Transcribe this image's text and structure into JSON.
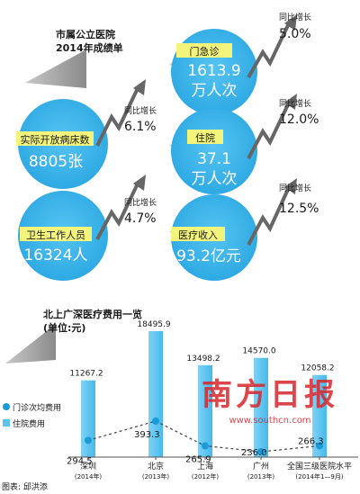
{
  "infographic": {
    "title_line1": "市属公立医院",
    "title_line2": "2014年成绩单",
    "growth_label": "同比增长",
    "stats": [
      {
        "label": "门急诊",
        "value": "1613.9",
        "unit": "万人次",
        "growth": "5.0%"
      },
      {
        "label": "实际开放病床数",
        "value": "8805张",
        "unit": "",
        "growth": "6.1%"
      },
      {
        "label": "住院",
        "value": "37.1",
        "unit": "万人次",
        "growth": "12.0%"
      },
      {
        "label": "卫生工作人员",
        "value": "16324人",
        "unit": "",
        "growth": "4.7%"
      },
      {
        "label": "医疗收入",
        "value": "93.2亿元",
        "unit": "",
        "growth": "12.5%"
      }
    ],
    "colors": {
      "circle": "#3ab4ea",
      "label_box": "#f3f47c",
      "arrow": "#666666",
      "triangle": "#a8a8a8"
    }
  },
  "chart_data": {
    "type": "bar",
    "title": "北上广深医疗费用一览",
    "subtitle": "(单位:元)",
    "categories": [
      "深圳",
      "北京",
      "上海",
      "广州",
      "全国三级医院水平"
    ],
    "category_notes": [
      "(2014年)",
      "(2013年)",
      "(2012年)",
      "(2013年)",
      "(2014年1—9月)"
    ],
    "series": [
      {
        "name": "住院费用",
        "values": [
          11267.2,
          18495.9,
          13498.2,
          14570.0,
          12058.2
        ],
        "labels": [
          "11267.2",
          "18495.9",
          "13498.2",
          "14570.0",
          "12058.2"
        ],
        "color": "#5ec4ef"
      },
      {
        "name": "门诊次均费用",
        "values": [
          294.5,
          393.3,
          265.9,
          236.0,
          266.3
        ],
        "labels": [
          "294.5",
          "393.3",
          "265.9",
          "236.0",
          "266.3"
        ],
        "color": "#1a9ad6"
      }
    ],
    "legend_position": "left",
    "grid": false
  },
  "watermark": {
    "text": "南方日报",
    "url": "www.southcn.com"
  },
  "credit": "图表: 邱洪添"
}
